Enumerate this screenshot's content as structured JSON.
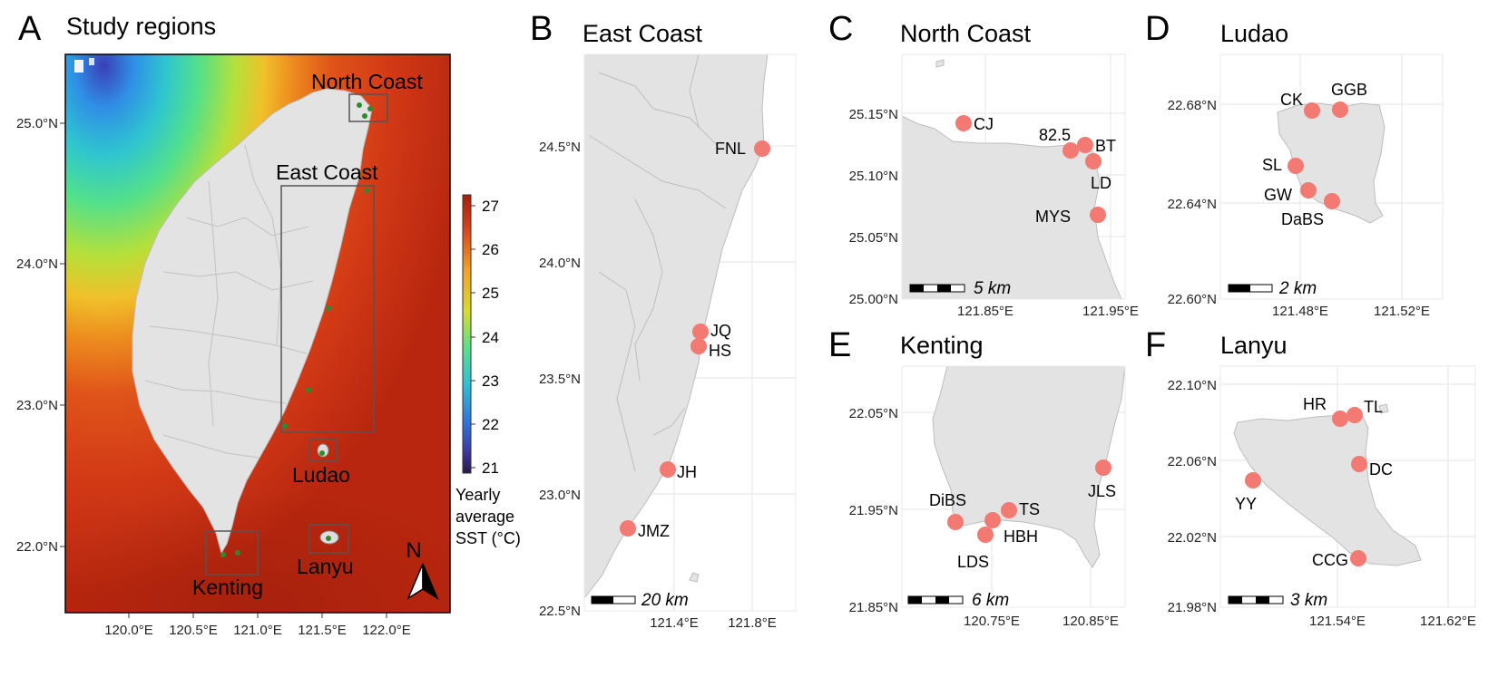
{
  "panels": {
    "A": {
      "letter": "A",
      "title": "Study regions",
      "yticks": [
        "25.0°N",
        "24.0°N",
        "23.0°N",
        "22.0°N"
      ],
      "xticks": [
        "120.0°E",
        "120.5°E",
        "121.0°E",
        "121.5°E",
        "122.0°E"
      ],
      "regions": [
        "North Coast",
        "East Coast",
        "Ludao",
        "Kenting",
        "Lanyu"
      ],
      "north": "N"
    },
    "B": {
      "letter": "B",
      "title": "East Coast",
      "yticks": [
        "24.5°N",
        "24.0°N",
        "23.5°N",
        "23.0°N",
        "22.5°N"
      ],
      "xticks": [
        "121.4°E",
        "121.8°E"
      ],
      "sites": [
        "FNL",
        "JQ",
        "HS",
        "JH",
        "JMZ"
      ],
      "scale": "20 km"
    },
    "C": {
      "letter": "C",
      "title": "North Coast",
      "yticks": [
        "25.15°N",
        "25.10°N",
        "25.05°N",
        "25.00°N"
      ],
      "xticks": [
        "121.85°E",
        "121.95°E"
      ],
      "sites": [
        "CJ",
        "82.5",
        "BT",
        "LD",
        "MYS"
      ],
      "scale": "5 km"
    },
    "D": {
      "letter": "D",
      "title": "Ludao",
      "yticks": [
        "22.68°N",
        "22.64°N",
        "22.60°N"
      ],
      "xticks": [
        "121.48°E",
        "121.52°E"
      ],
      "sites": [
        "CK",
        "GGB",
        "SL",
        "GW",
        "DaBS"
      ],
      "scale": "2 km"
    },
    "E": {
      "letter": "E",
      "title": "Kenting",
      "yticks": [
        "22.05°N",
        "21.95°N",
        "21.85°N"
      ],
      "xticks": [
        "120.75°E",
        "120.85°E"
      ],
      "sites": [
        "DiBS",
        "TS",
        "HBH",
        "LDS",
        "JLS"
      ],
      "scale": "6 km"
    },
    "F": {
      "letter": "F",
      "title": "Lanyu",
      "yticks": [
        "22.10°N",
        "22.06°N",
        "22.02°N",
        "21.98°N"
      ],
      "xticks": [
        "121.54°E",
        "121.62°E"
      ],
      "sites": [
        "HR",
        "TL",
        "DC",
        "YY",
        "CCG"
      ],
      "scale": "3 km"
    }
  },
  "colorbar": {
    "ticks": [
      "27",
      "26",
      "25",
      "24",
      "23",
      "22",
      "21"
    ],
    "label": [
      "Yearly",
      "average",
      "SST (°C)"
    ],
    "colors": [
      "#b3200f",
      "#d33a12",
      "#e56b18",
      "#f1a22a",
      "#dcd62c",
      "#9fe044",
      "#52e08a",
      "#2fc6cf",
      "#2f8fe6",
      "#3a52d0",
      "#3b2f8a",
      "#2a1a4a"
    ]
  }
}
